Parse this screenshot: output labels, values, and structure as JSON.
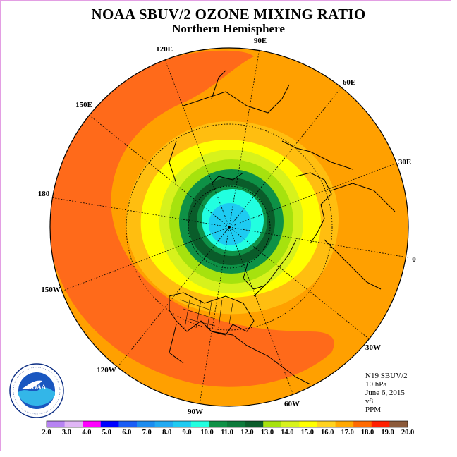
{
  "title": "NOAA SBUV/2 OZONE MIXING RATIO",
  "subtitle": "Northern Hemisphere",
  "longitude_labels": [
    "90E",
    "60E",
    "30E",
    "0",
    "30W",
    "60W",
    "90W",
    "120W",
    "150W",
    "180",
    "150E",
    "120E"
  ],
  "info": {
    "satellite": "N19 SBUV/2",
    "level": "10 hPa",
    "date": "June 6, 2015",
    "version": "v8",
    "units": "PPM"
  },
  "logo_text": "NOAA",
  "logo_ring_text": "NATIONAL OCEANIC AND ATMOSPHERIC ADMINISTRATION · U.S. DEPARTMENT OF COMMERCE",
  "colorbar": {
    "labels": [
      "2.0",
      "3.0",
      "4.0",
      "5.0",
      "6.0",
      "7.0",
      "8.0",
      "9.0",
      "10.0",
      "11.0",
      "12.0",
      "13.0",
      "14.0",
      "15.0",
      "16.0",
      "17.0",
      "18.0",
      "19.0",
      "20.0"
    ],
    "colors": [
      "#b784f2",
      "#e0b6f5",
      "#ff00ff",
      "#0000ff",
      "#1a5df5",
      "#1c8cf0",
      "#22aaf2",
      "#1ecbf2",
      "#22ffe0",
      "#0e9146",
      "#0c7a3a",
      "#0a5c2a",
      "#a6e20e",
      "#d7f31c",
      "#ffff00",
      "#ffd21e",
      "#ffa800",
      "#ff6a00",
      "#ff2000",
      "#8c5a3a"
    ]
  },
  "map_colors": {
    "orange_red": "#ff6a1a",
    "orange": "#ffa000",
    "light_orange": "#ffbe10",
    "yellow": "#ffff00",
    "yellow_green": "#d7f21c",
    "light_green": "#a6e20e",
    "green": "#0e9146",
    "dark_green": "#0a5c2a",
    "cyan": "#22ffe0",
    "light_cyan": "#1ecbf2"
  }
}
